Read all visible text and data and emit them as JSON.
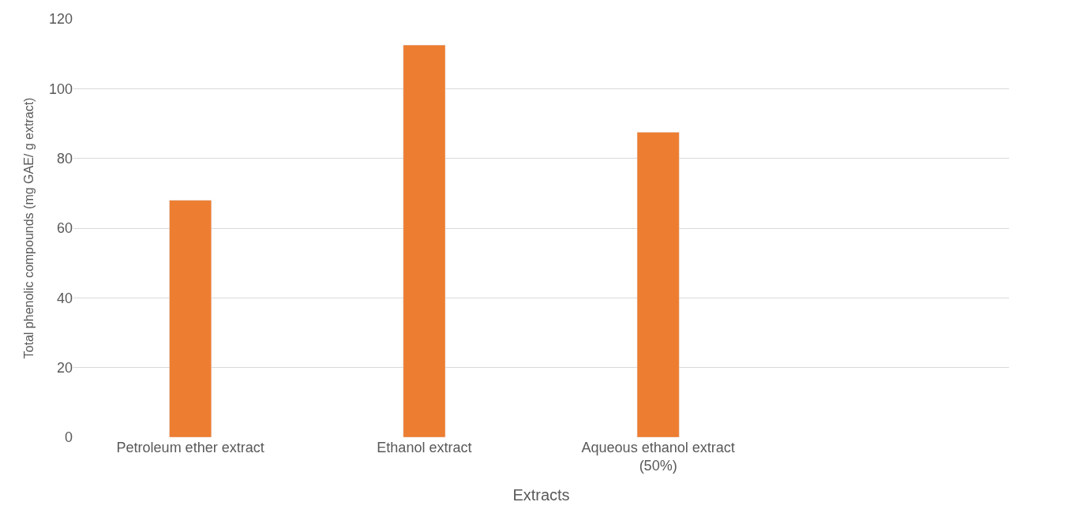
{
  "chart_data": {
    "type": "bar",
    "xlabel": "Extracts",
    "ylabel": "Total phenolic compounds (mg GAE/ g extract)",
    "categories": [
      "Petroleum ether extract",
      "Ethanol extract",
      "Aqueous ethanol extract\n(50%)",
      null
    ],
    "values": [
      68,
      112.5,
      87.5,
      null
    ],
    "color": "#ed7d31",
    "ylim": [
      0,
      120
    ],
    "yticks": [
      0,
      20,
      40,
      60,
      80,
      100,
      120
    ],
    "grid": "y",
    "legend": false
  }
}
